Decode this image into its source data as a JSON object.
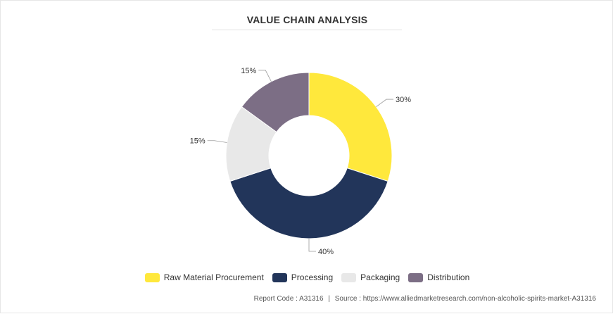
{
  "chart_data": {
    "type": "pie",
    "variant": "donut",
    "title": "VALUE CHAIN ANALYSIS",
    "categories": [
      "Raw Material Procurement",
      "Processing",
      "Packaging",
      "Distribution"
    ],
    "values": [
      30,
      40,
      15,
      15
    ],
    "labels": [
      "30%",
      "40%",
      "15%",
      "15%"
    ],
    "colors": [
      "#FFE83C",
      "#22355A",
      "#E8E8E8",
      "#7C6E85"
    ],
    "legend_position": "bottom"
  },
  "footer": {
    "report_code": "Report Code : A31316",
    "separator": "|",
    "source": "Source : https://www.alliedmarketresearch.com/non-alcoholic-spirits-market-A31316"
  }
}
